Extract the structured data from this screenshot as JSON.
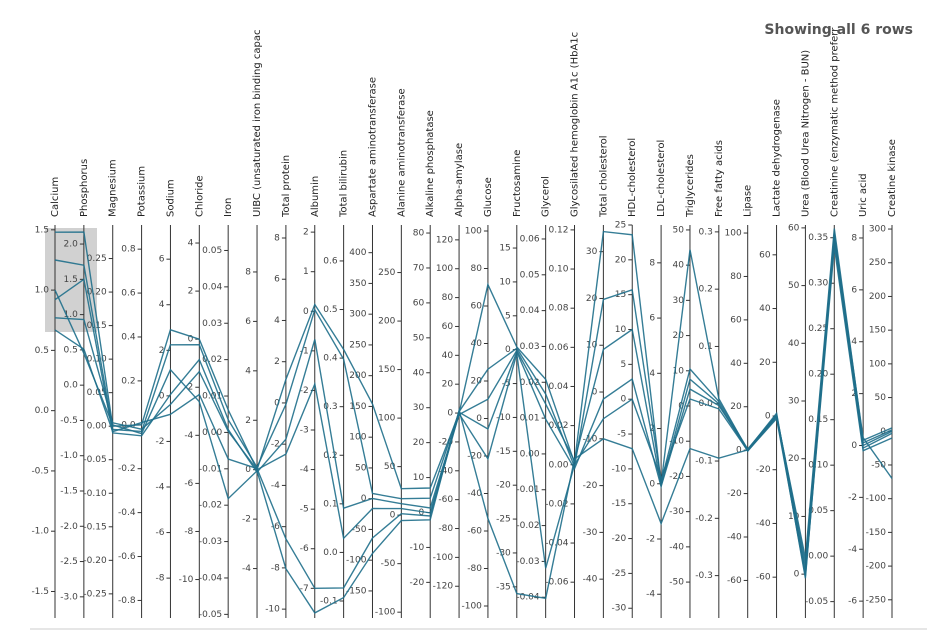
{
  "status": "Showing all 6 rows",
  "chart_data": {
    "type": "parallel",
    "axes": [
      {
        "name": "Calcium",
        "ylim": [
          -1.72,
          1.54
        ],
        "yticks": [
          -1.5,
          {
            "value": -1,
            "label": "-1.0"
          },
          -0.5,
          {
            "value": 0,
            "label": "0.0"
          },
          0.5,
          {
            "value": 1,
            "label": "1.0"
          },
          1.5
        ]
      },
      {
        "name": "Phosphorus",
        "ylim": [
          -3.3,
          2.27
        ],
        "yticks": [
          {
            "value": -3,
            "label": "-3.0"
          },
          -2.5,
          {
            "value": -2,
            "label": "-2.0"
          },
          -1.5,
          {
            "value": -1,
            "label": "-1.0"
          },
          -0.5,
          {
            "value": 0,
            "label": "0.0"
          },
          0.5,
          {
            "value": 1,
            "label": "1.0"
          },
          1.5,
          {
            "value": 2,
            "label": "2.0"
          }
        ]
      },
      {
        "name": "Magnesium",
        "ylim": [
          -0.286,
          0.3
        ],
        "yticks": [
          -0.25,
          {
            "value": -0.2,
            "label": "-0.20"
          },
          -0.15,
          {
            "value": -0.1,
            "label": "-0.10"
          },
          -0.05,
          {
            "value": 0,
            "label": "0.00"
          },
          0.05,
          {
            "value": 0.1,
            "label": "0.10"
          },
          0.15,
          {
            "value": 0.2,
            "label": "0.20"
          },
          0.25
        ]
      },
      {
        "name": "Potassium",
        "ylim": [
          -0.88,
          0.91
        ],
        "yticks": [
          -0.8,
          -0.6,
          -0.4,
          -0.2,
          {
            "value": 0,
            "label": "0.0"
          },
          0.2,
          0.4,
          0.6,
          0.8
        ]
      },
      {
        "name": "Sodium",
        "ylim": [
          -9.75,
          7.5
        ],
        "yticks": [
          -8,
          -6,
          -4,
          -2,
          0,
          2,
          4,
          6
        ]
      },
      {
        "name": "Chloride",
        "ylim": [
          -11.6,
          4.75
        ],
        "yticks": [
          -10,
          -8,
          -6,
          -4,
          -2,
          0,
          2,
          4
        ]
      },
      {
        "name": "Iron",
        "ylim": [
          -0.051,
          0.057
        ],
        "yticks": [
          -0.05,
          -0.04,
          -0.03,
          -0.02,
          -0.01,
          {
            "value": 0,
            "label": "0.00"
          },
          0.01,
          0.02,
          0.03,
          0.04,
          0.05
        ]
      },
      {
        "name": "UIBC (unsaturated iron binding capac",
        "ylim": [
          -6,
          9.9
        ],
        "yticks": [
          -4,
          -2,
          0,
          2,
          4,
          6,
          8
        ]
      },
      {
        "name": "Total protein",
        "ylim": [
          -10.43,
          8.63
        ],
        "yticks": [
          -10,
          -8,
          -6,
          -4,
          -2,
          0,
          2,
          4,
          6,
          8
        ]
      },
      {
        "name": "Albumin",
        "ylim": [
          -7.75,
          2.18
        ],
        "yticks": [
          -7,
          -6,
          -5,
          -4,
          -3,
          -2,
          -1,
          0,
          1,
          2
        ]
      },
      {
        "name": "Total bilirubin",
        "ylim": [
          -0.135,
          0.674
        ],
        "yticks": [
          -0.1,
          {
            "value": 0,
            "label": "0.0"
          },
          0.1,
          0.2,
          0.3,
          0.4,
          0.5,
          0.6
        ]
      },
      {
        "name": "Aspartate aminotransferase",
        "ylim": [
          -194,
          445
        ],
        "yticks": [
          -150,
          -100,
          -50,
          0,
          50,
          100,
          150,
          200,
          250,
          300,
          350,
          400
        ]
      },
      {
        "name": "Alanine aminotransferase",
        "ylim": [
          -106,
          299
        ],
        "yticks": [
          -100,
          -50,
          0,
          50,
          100,
          150,
          200,
          250
        ]
      },
      {
        "name": "Alkaline phosphatase",
        "ylim": [
          -30.2,
          82.3
        ],
        "yticks": [
          -20,
          -10,
          0,
          10,
          20,
          30,
          40,
          50,
          60,
          70,
          80
        ]
      },
      {
        "name": "Alpha-amylase",
        "ylim": [
          -142,
          130.3
        ],
        "yticks": [
          -120,
          -100,
          -80,
          -60,
          -40,
          -20,
          0,
          20,
          40,
          60,
          80,
          100,
          120
        ]
      },
      {
        "name": "Glucose",
        "ylim": [
          -106.4,
          103.2
        ],
        "yticks": [
          -100,
          -80,
          -60,
          -40,
          -20,
          0,
          20,
          40,
          60,
          80,
          100
        ]
      },
      {
        "name": "Fructosamine",
        "ylim": [
          -39.6,
          18.4
        ],
        "yticks": [
          -35,
          -30,
          -25,
          -20,
          -15,
          -10,
          -5,
          0,
          5,
          10,
          15
        ]
      },
      {
        "name": "Glycerol",
        "ylim": [
          -0.0458,
          0.0639
        ],
        "yticks": [
          -0.04,
          -0.03,
          -0.02,
          -0.01,
          {
            "value": 0,
            "label": "0.00"
          },
          0.01,
          0.02,
          0.03,
          0.04,
          0.05,
          0.06
        ]
      },
      {
        "name": "Glycosilated hemoglobin A1c (HbA1c",
        "ylim": [
          -0.0783,
          0.1225
        ],
        "yticks": [
          -0.06,
          -0.04,
          -0.02,
          {
            "value": 0,
            "label": "0.00"
          },
          0.02,
          0.04,
          0.06,
          0.08,
          {
            "value": 0.1,
            "label": "0.10"
          },
          0.12
        ]
      },
      {
        "name": "Total cholesterol",
        "ylim": [
          -48.3,
          35.7
        ],
        "yticks": [
          -40,
          -30,
          -20,
          -10,
          0,
          10,
          20,
          30
        ]
      },
      {
        "name": "HDL-cholesterol",
        "ylim": [
          -31.4,
          25
        ],
        "yticks": [
          -30,
          -25,
          -20,
          -15,
          -10,
          -5,
          0,
          5,
          10,
          15,
          20,
          25
        ]
      },
      {
        "name": "LDL-cholesterol",
        "ylim": [
          -4.86,
          9.37
        ],
        "yticks": [
          -4,
          -2,
          0,
          2,
          4,
          6,
          8
        ]
      },
      {
        "name": "Triglycerides",
        "ylim": [
          -60.2,
          51.4
        ],
        "yticks": [
          -50,
          -40,
          -30,
          -20,
          -10,
          0,
          10,
          20,
          30,
          40,
          50
        ]
      },
      {
        "name": "Free fatty acids",
        "ylim": [
          -0.374,
          0.312
        ],
        "yticks": [
          -0.3,
          -0.2,
          -0.1,
          {
            "value": 0,
            "label": "0.0"
          },
          0.1,
          0.2,
          0.3
        ]
      },
      {
        "name": "Lipase",
        "ylim": [
          -77.3,
          103.7
        ],
        "yticks": [
          -60,
          -40,
          -20,
          0,
          20,
          40,
          60,
          80,
          100
        ]
      },
      {
        "name": "Lactate dehydrogenase",
        "ylim": [
          -75.2,
          71.1
        ],
        "yticks": [
          -60,
          -40,
          -20,
          0,
          20,
          40,
          60
        ]
      },
      {
        "name": "Urea (Blood Urea Nitrogen - BUN)",
        "ylim": [
          -7.6,
          60.5
        ],
        "yticks": [
          0,
          10,
          20,
          30,
          40,
          50,
          60
        ]
      },
      {
        "name": "Creatinine (enzymatic method preferr",
        "ylim": [
          -0.068,
          0.364
        ],
        "yticks": [
          -0.05,
          {
            "value": 0,
            "label": "0.00"
          },
          0.05,
          {
            "value": 0.1,
            "label": "0.10"
          },
          0.15,
          {
            "value": 0.2,
            "label": "0.20"
          },
          0.25,
          {
            "value": 0.3,
            "label": "0.30"
          },
          0.35
        ]
      },
      {
        "name": "Uric acid",
        "ylim": [
          -6.65,
          8.5
        ],
        "yticks": [
          -6,
          -4,
          -2,
          0,
          2,
          4,
          6,
          8
        ]
      },
      {
        "name": "Creatine kinase",
        "ylim": [
          -277,
          306
        ],
        "yticks": [
          -250,
          -200,
          -150,
          -100,
          -50,
          0,
          50,
          100,
          150,
          200,
          250,
          300
        ]
      }
    ],
    "series": [
      {
        "color": "#1f6f8b",
        "values": [
          1.48,
          2.17,
          0,
          0,
          2.9,
          0,
          0.0062,
          0,
          1.14,
          0.17,
          0.418,
          154,
          27.2,
          7.0,
          0,
          71.4,
          0.4,
          0.0208,
          0.001,
          34.3,
          23.6,
          0,
          44.4,
          0.009,
          0,
          0,
          2.8,
          0.36,
          0.2,
          5
        ]
      },
      {
        "color": "#1f6f8b",
        "values": [
          1.25,
          1.7,
          -0.005,
          -0.03,
          2.24,
          -0.23,
          0.0035,
          0.1,
          -0.07,
          0.04,
          0.398,
          8.4,
          16.9,
          4.1,
          1,
          26.3,
          0.2,
          0.0167,
          -0.001,
          19.8,
          15.7,
          0.07,
          10.5,
          0.004,
          0.5,
          0.5,
          1.9,
          0.355,
          0.1,
          2
        ]
      },
      {
        "color": "#1f6f8b",
        "values": [
          0.92,
          1.5,
          -0.01,
          -0.05,
          0.06,
          -0.85,
          0.0008,
          -0.1,
          -1.76,
          -0.71,
          0.091,
          0.3,
          11.8,
          1.3,
          -1,
          10.3,
          -0.1,
          0.0139,
          0.002,
          9.1,
          10,
          -0.07,
          7.6,
          0,
          -0.5,
          -0.5,
          1.0,
          0.35,
          0,
          0
        ]
      },
      {
        "color": "#1f6f8b",
        "values": [
          0.77,
          0.93,
          0.005,
          -0.02,
          -0.38,
          -1.35,
          0.0003,
          0,
          -2.48,
          -1.84,
          0.029,
          -15.9,
          6.7,
          -0.1,
          0.5,
          -5.6,
          -0.3,
          0.0097,
          -0.002,
          -1.5,
          2.9,
          -0.1,
          4.8,
          -0.003,
          0.3,
          1,
          0.2,
          0.345,
          -0.1,
          -3
        ]
      },
      {
        "color": "#1f6f8b",
        "values": [
          0.67,
          0.51,
          -0.008,
          0.01,
          -0.81,
          -2.3,
          -0.0073,
          0.05,
          -6.59,
          -7.0,
          -0.073,
          -64,
          1.5,
          -1.0,
          -0.5,
          -21.5,
          -0.6,
          -0.0319,
          0,
          -5.7,
          0,
          0.18,
          2.0,
          -0.009,
          -0.3,
          -1,
          -0.3,
          0.34,
          -0.2,
          -10
        ]
      },
      {
        "color": "#1f6f8b",
        "values": [
          1.0,
          0.45,
          0.002,
          -0.04,
          1.15,
          -2.6,
          -0.0182,
          -0.05,
          -8.04,
          -7.62,
          -0.093,
          -89,
          -5.6,
          -2.1,
          2,
          -53.3,
          -36,
          -0.0403,
          0.003,
          -10,
          -7.1,
          -1.44,
          -12.1,
          -0.095,
          0.1,
          0.2,
          -0.7,
          0.352,
          0.3,
          -70
        ]
      }
    ]
  }
}
